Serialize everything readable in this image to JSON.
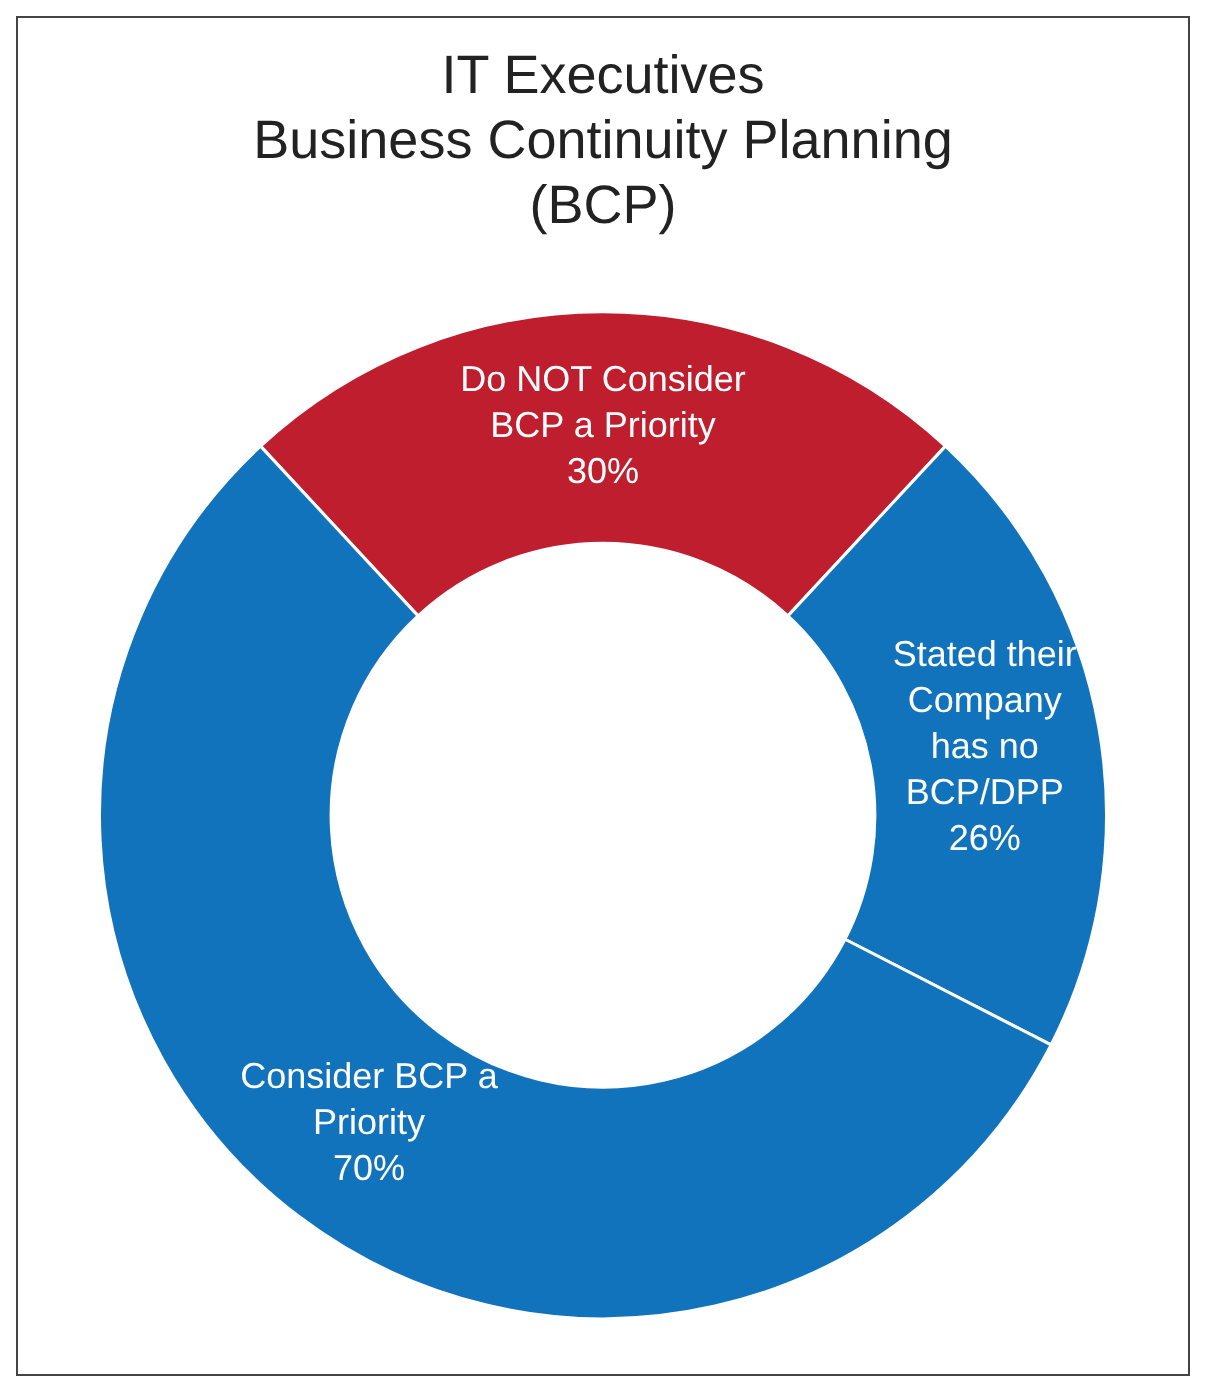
{
  "chart_data": {
    "type": "donut",
    "title": "IT Executives\nBusiness Continuity Planning\n(BCP)",
    "categories": [
      "Do NOT Consider BCP a Priority",
      "Stated their Company has no BCP/DPP",
      "Consider BCP a Priority"
    ],
    "values": [
      30,
      26,
      70
    ],
    "colors": [
      "#be1e2d",
      "#1273bd",
      "#1273bd"
    ],
    "value_labels": [
      "30%",
      "26%",
      "70%"
    ],
    "legend": false
  }
}
